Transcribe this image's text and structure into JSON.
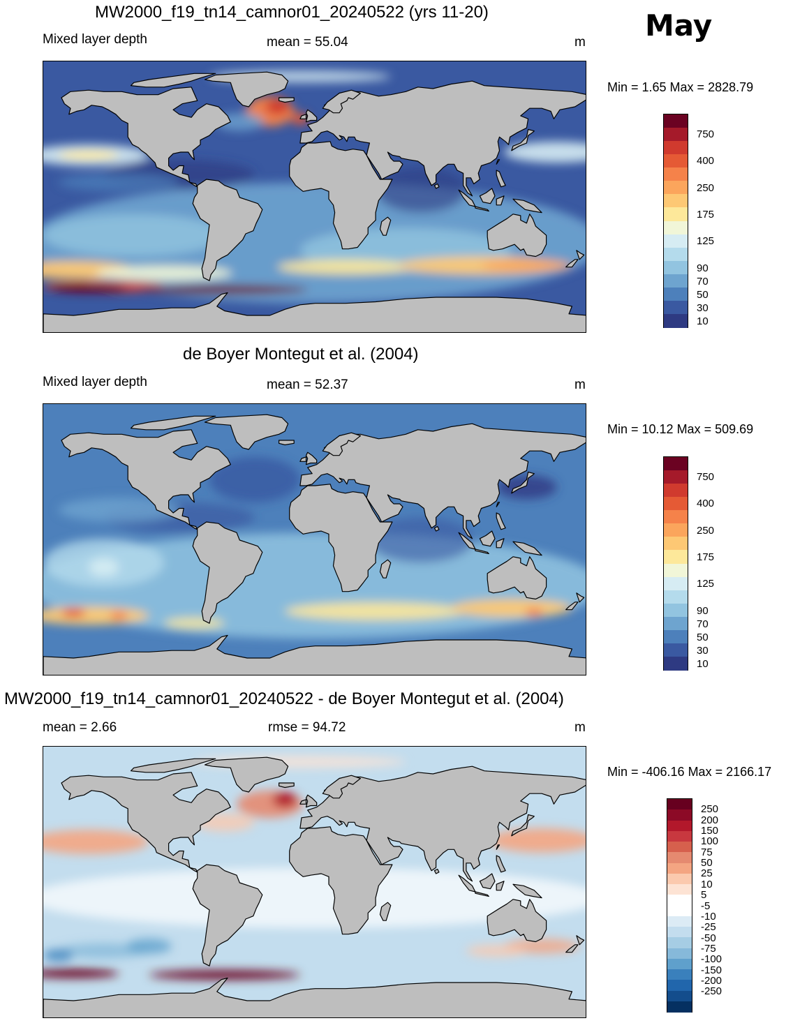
{
  "month": "May",
  "land_color": "#bebebe",
  "panels": [
    {
      "title": "MW2000_f19_tn14_camnor01_20240522 (yrs 11-20)",
      "left_label": "Mixed layer depth",
      "center_label": "mean =  55.04",
      "units": "m",
      "minmax": "Min =   1.65 Max = 2828.79",
      "field": "model",
      "colorbar_labels": [
        "750",
        "400",
        "250",
        "175",
        "125",
        "90",
        "70",
        "50",
        "30",
        "10"
      ]
    },
    {
      "title": "de Boyer Montegut et al. (2004)",
      "left_label": "Mixed layer depth",
      "center_label": "mean =  52.37",
      "units": "m",
      "minmax": "Min =  10.12 Max = 509.69",
      "field": "obs",
      "colorbar_labels": [
        "750",
        "400",
        "250",
        "175",
        "125",
        "90",
        "70",
        "50",
        "30",
        "10"
      ]
    },
    {
      "title": "MW2000_f19_tn14_camnor01_20240522 - de Boyer Montegut et al. (2004)",
      "left_label": "mean =   2.66",
      "center_label": "rmse =  94.72",
      "units": "m",
      "minmax": "Min = -406.16 Max = 2166.17",
      "field": "diff",
      "colorbar_labels": [
        "250",
        "200",
        "150",
        "100",
        "75",
        "50",
        "25",
        "10",
        "5",
        "-5",
        "-10",
        "-25",
        "-50",
        "-75",
        "-100",
        "-150",
        "-200",
        "-250"
      ]
    }
  ],
  "colormaps": {
    "seq": [
      "#6b0222",
      "#a51a2a",
      "#d03a2e",
      "#e55a35",
      "#f5824a",
      "#fba55c",
      "#fdc874",
      "#fde89a",
      "#f1f6d8",
      "#d6ecf3",
      "#b4dbec",
      "#92c4e0",
      "#6ea4cf",
      "#4d80bb",
      "#3a59a1",
      "#2e3a82"
    ],
    "div": [
      "#67001f",
      "#8c0a26",
      "#b2182b",
      "#c8383f",
      "#d6604d",
      "#e58a70",
      "#f4a582",
      "#fbc9ae",
      "#fde3d4",
      "#ffffff",
      "#ffffff",
      "#dcebf5",
      "#c3ddee",
      "#a6cde4",
      "#86b9da",
      "#5fa0cc",
      "#3a80bc",
      "#2166ac",
      "#134d8c",
      "#053061"
    ]
  }
}
